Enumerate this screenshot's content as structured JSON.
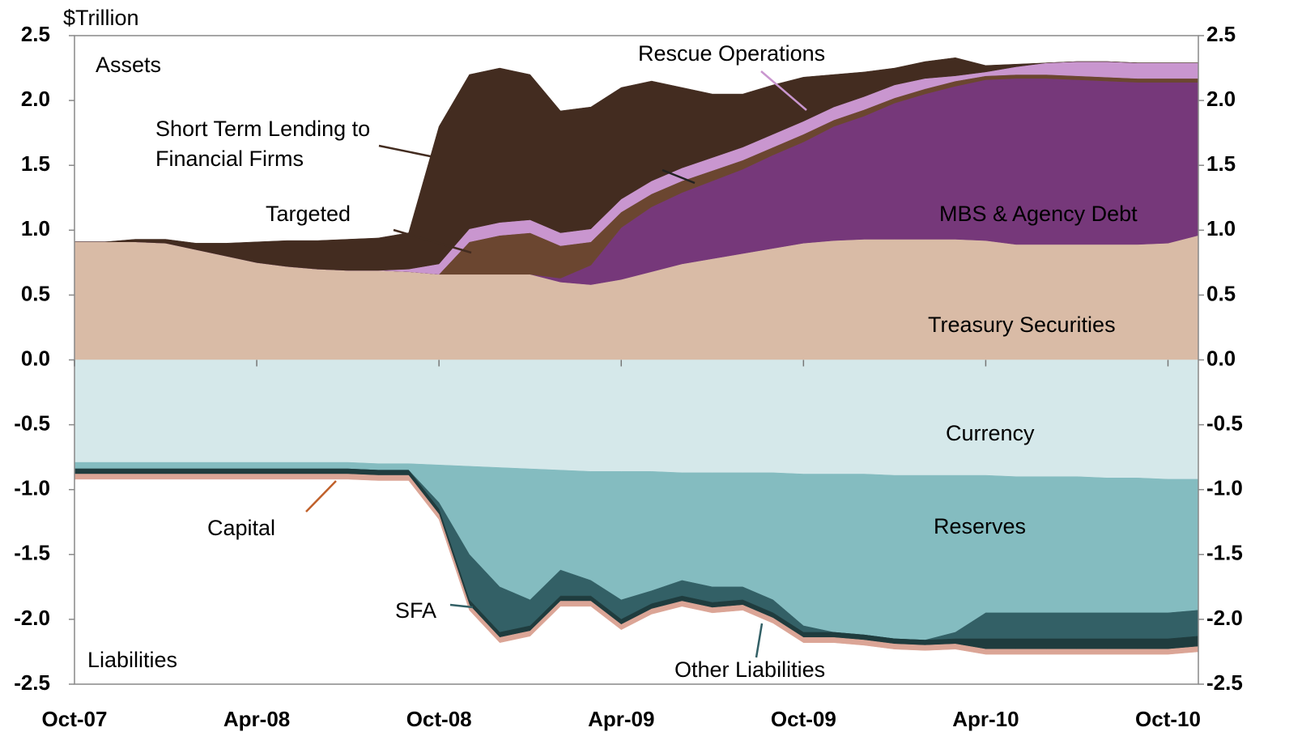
{
  "chart_data": {
    "type": "stacked_area",
    "y_label": "$Trillion",
    "annotations": [
      "Assets",
      "Liabilities"
    ],
    "x": [
      "Oct-07",
      "Nov-07",
      "Dec-07",
      "Jan-08",
      "Feb-08",
      "Mar-08",
      "Apr-08",
      "May-08",
      "Jun-08",
      "Jul-08",
      "Aug-08",
      "Sep-08",
      "Oct-08",
      "Nov-08",
      "Dec-08",
      "Jan-09",
      "Feb-09",
      "Mar-09",
      "Apr-09",
      "May-09",
      "Jun-09",
      "Jul-09",
      "Aug-09",
      "Sep-09",
      "Oct-09",
      "Nov-09",
      "Dec-09",
      "Jan-10",
      "Feb-10",
      "Mar-10",
      "Apr-10",
      "May-10",
      "Jun-10",
      "Jul-10",
      "Aug-10",
      "Sep-10",
      "Oct-10",
      "Nov-10"
    ],
    "xticks": [
      "Oct-07",
      "Apr-08",
      "Oct-08",
      "Apr-09",
      "Oct-09",
      "Apr-10",
      "Oct-10"
    ],
    "ylim": [
      -2.5,
      2.5
    ],
    "yticks": [
      2.5,
      {
        "value": 2,
        "label": "2.0"
      },
      1.5,
      {
        "value": 1,
        "label": "1.0"
      },
      0.5,
      {
        "value": 0,
        "label": "0.0"
      },
      -0.5,
      {
        "value": -1,
        "label": "-1.0"
      },
      -1.5,
      {
        "value": -2,
        "label": "-2.0"
      },
      -2.5
    ],
    "y2lim": [
      -2.5,
      2.5
    ],
    "y2ticks": [
      2.5,
      {
        "value": 2,
        "label": "2.0"
      },
      1.5,
      {
        "value": 1,
        "label": "1.0"
      },
      0.5,
      {
        "value": 0,
        "label": "0.0"
      },
      -0.5,
      {
        "value": -1,
        "label": "-1.0"
      },
      -1.5,
      {
        "value": -2,
        "label": "-2.0"
      },
      -2.5
    ],
    "series": [
      {
        "name": "Treasury Securities",
        "color": "#d9bba6",
        "values": [
          0.91,
          0.91,
          0.91,
          0.9,
          0.85,
          0.8,
          0.75,
          0.72,
          0.7,
          0.69,
          0.69,
          0.68,
          0.66,
          0.66,
          0.66,
          0.66,
          0.6,
          0.58,
          0.62,
          0.68,
          0.74,
          0.78,
          0.82,
          0.86,
          0.9,
          0.92,
          0.93,
          0.93,
          0.93,
          0.93,
          0.92,
          0.89,
          0.89,
          0.89,
          0.89,
          0.89,
          0.9,
          0.96
        ]
      },
      {
        "name": "MBS & Agency Debt",
        "color": "#76387a",
        "values": [
          0,
          0,
          0,
          0,
          0,
          0,
          0,
          0,
          0,
          0,
          0,
          0,
          0,
          0,
          0,
          0,
          0.03,
          0.15,
          0.4,
          0.5,
          0.55,
          0.6,
          0.65,
          0.72,
          0.78,
          0.88,
          0.95,
          1.05,
          1.12,
          1.18,
          1.24,
          1.28,
          1.28,
          1.27,
          1.26,
          1.25,
          1.24,
          1.18
        ]
      },
      {
        "name": "Targeted",
        "color": "#6b4630",
        "values": [
          0,
          0,
          0,
          0,
          0,
          0,
          0,
          0,
          0,
          0,
          0,
          0,
          0,
          0.25,
          0.3,
          0.32,
          0.25,
          0.18,
          0.12,
          0.1,
          0.09,
          0.08,
          0.07,
          0.06,
          0.06,
          0.05,
          0.05,
          0.04,
          0.04,
          0.04,
          0.03,
          0.03,
          0.03,
          0.03,
          0.03,
          0.03,
          0.03,
          0.03
        ]
      },
      {
        "name": "Rescue Operations",
        "color": "#c996cf",
        "values": [
          0,
          0,
          0,
          0,
          0,
          0,
          0,
          0,
          0,
          0,
          0,
          0.02,
          0.08,
          0.1,
          0.1,
          0.1,
          0.1,
          0.1,
          0.1,
          0.1,
          0.1,
          0.1,
          0.1,
          0.1,
          0.1,
          0.1,
          0.1,
          0.1,
          0.08,
          0.04,
          0.03,
          0.06,
          0.09,
          0.11,
          0.12,
          0.12,
          0.12,
          0.12
        ]
      },
      {
        "name": "Short Term Lending to Financial Firms",
        "color": "#432c20",
        "values": [
          0,
          0,
          0.02,
          0.03,
          0.05,
          0.1,
          0.16,
          0.2,
          0.22,
          0.24,
          0.25,
          0.28,
          1.06,
          1.19,
          1.19,
          1.12,
          0.94,
          0.94,
          0.86,
          0.77,
          0.62,
          0.49,
          0.41,
          0.38,
          0.34,
          0.25,
          0.19,
          0.13,
          0.13,
          0.14,
          0.05,
          0.02,
          0,
          0,
          0,
          0,
          0,
          0
        ]
      },
      {
        "name": "Currency",
        "color": "#d5e8ea",
        "values": [
          -0.79,
          -0.79,
          -0.79,
          -0.79,
          -0.79,
          -0.79,
          -0.79,
          -0.79,
          -0.79,
          -0.79,
          -0.8,
          -0.8,
          -0.81,
          -0.82,
          -0.83,
          -0.84,
          -0.85,
          -0.86,
          -0.86,
          -0.86,
          -0.87,
          -0.87,
          -0.87,
          -0.87,
          -0.88,
          -0.88,
          -0.88,
          -0.89,
          -0.89,
          -0.89,
          -0.89,
          -0.9,
          -0.9,
          -0.9,
          -0.91,
          -0.91,
          -0.92,
          -0.92
        ]
      },
      {
        "name": "Reserves",
        "color": "#84bcc0",
        "values": [
          -0.05,
          -0.05,
          -0.05,
          -0.05,
          -0.05,
          -0.05,
          -0.05,
          -0.05,
          -0.05,
          -0.05,
          -0.05,
          -0.05,
          -0.29,
          -0.68,
          -0.92,
          -1.01,
          -0.77,
          -0.84,
          -0.99,
          -0.92,
          -0.83,
          -0.88,
          -0.88,
          -0.98,
          -1.17,
          -1.22,
          -1.24,
          -1.26,
          -1.27,
          -1.21,
          -1.06,
          -1.05,
          -1.05,
          -1.05,
          -1.04,
          -1.04,
          -1.03,
          -1.01
        ]
      },
      {
        "name": "SFA",
        "color": "#336066",
        "values": [
          0,
          0,
          0,
          0,
          0,
          0,
          0,
          0,
          0,
          0,
          0,
          0,
          -0.05,
          -0.35,
          -0.35,
          -0.2,
          -0.2,
          -0.12,
          -0.15,
          -0.1,
          -0.12,
          -0.12,
          -0.1,
          -0.1,
          -0.05,
          0,
          0,
          0,
          0,
          -0.05,
          -0.2,
          -0.2,
          -0.2,
          -0.2,
          -0.2,
          -0.2,
          -0.2,
          -0.2
        ]
      },
      {
        "name": "Other Liabilities",
        "color": "#1f3c3e",
        "values": [
          -0.04,
          -0.04,
          -0.04,
          -0.04,
          -0.04,
          -0.04,
          -0.04,
          -0.04,
          -0.04,
          -0.04,
          -0.04,
          -0.04,
          -0.04,
          -0.04,
          -0.04,
          -0.04,
          -0.04,
          -0.04,
          -0.04,
          -0.04,
          -0.04,
          -0.04,
          -0.04,
          -0.04,
          -0.04,
          -0.04,
          -0.04,
          -0.04,
          -0.04,
          -0.04,
          -0.08,
          -0.08,
          -0.08,
          -0.08,
          -0.08,
          -0.08,
          -0.08,
          -0.08
        ]
      },
      {
        "name": "Capital",
        "color": "#dba596",
        "values": [
          -0.04,
          -0.04,
          -0.04,
          -0.04,
          -0.04,
          -0.04,
          -0.04,
          -0.04,
          -0.04,
          -0.04,
          -0.04,
          -0.04,
          -0.04,
          -0.04,
          -0.04,
          -0.04,
          -0.04,
          -0.04,
          -0.04,
          -0.04,
          -0.04,
          -0.04,
          -0.04,
          -0.04,
          -0.04,
          -0.04,
          -0.04,
          -0.04,
          -0.04,
          -0.04,
          -0.04,
          -0.04,
          -0.04,
          -0.04,
          -0.04,
          -0.04,
          -0.04,
          -0.04
        ]
      }
    ]
  }
}
